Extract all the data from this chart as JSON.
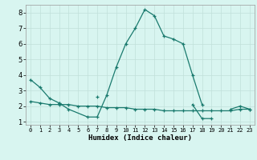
{
  "line1_x": [
    0,
    1,
    2,
    3,
    4,
    5,
    6,
    7,
    8,
    9,
    10,
    11,
    12,
    13,
    14,
    15,
    16,
    17,
    18,
    19,
    20,
    21,
    22,
    23
  ],
  "line1_y": [
    3.7,
    3.2,
    2.5,
    2.2,
    null,
    null,
    null,
    2.6,
    null,
    null,
    null,
    null,
    null,
    null,
    null,
    null,
    null,
    2.1,
    1.2,
    1.2,
    null,
    1.8,
    2.0,
    1.8
  ],
  "line2_x": [
    3,
    4,
    6,
    7,
    8,
    9,
    10,
    11,
    12,
    13,
    14,
    15,
    16,
    17,
    18
  ],
  "line2_y": [
    2.2,
    1.8,
    1.3,
    1.3,
    2.7,
    4.5,
    6.0,
    7.0,
    8.2,
    7.8,
    6.5,
    6.3,
    6.0,
    4.0,
    2.1
  ],
  "line3_x": [
    0,
    1,
    2,
    3,
    4,
    5,
    6,
    7,
    8,
    9,
    10,
    11,
    12,
    13,
    14,
    15,
    16,
    17,
    18,
    19,
    20,
    21,
    22,
    23
  ],
  "line3_y": [
    2.3,
    2.2,
    2.1,
    2.1,
    2.1,
    2.0,
    2.0,
    2.0,
    1.9,
    1.9,
    1.9,
    1.8,
    1.8,
    1.8,
    1.7,
    1.7,
    1.7,
    1.7,
    1.7,
    1.7,
    1.7,
    1.7,
    1.8,
    1.8
  ],
  "line_color": "#1a7a6e",
  "bg_color": "#d8f5f0",
  "grid_color": "#c0e0da",
  "xlabel": "Humidex (Indice chaleur)",
  "xlim": [
    -0.5,
    23.5
  ],
  "ylim": [
    0.8,
    8.5
  ],
  "yticks": [
    1,
    2,
    3,
    4,
    5,
    6,
    7,
    8
  ],
  "xticks": [
    0,
    1,
    2,
    3,
    4,
    5,
    6,
    7,
    8,
    9,
    10,
    11,
    12,
    13,
    14,
    15,
    16,
    17,
    18,
    19,
    20,
    21,
    22,
    23
  ]
}
